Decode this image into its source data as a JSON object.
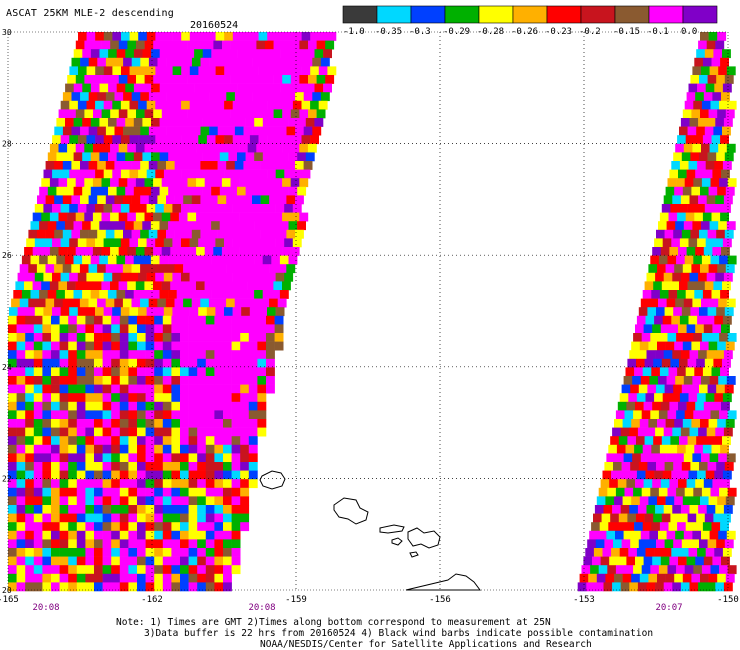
{
  "header": {
    "title": "ASCAT 25KM MLE-2 descending",
    "date": "20160524"
  },
  "colorbar": {
    "labels": [
      "-1.0",
      "-0.35",
      "-0.3",
      "-0.29",
      "-0.28",
      "-0.26",
      "-0.23",
      "-0.2",
      "-0.15",
      "-0.1",
      "0.0"
    ],
    "colors": [
      "#3a3a3a",
      "#00d8ff",
      "#0040ff",
      "#00b000",
      "#ffff00",
      "#ffb000",
      "#ff0000",
      "#c8141e",
      "#8a5a30",
      "#ff00ff",
      "#8000c8"
    ]
  },
  "map": {
    "lon_ticks": [
      "-165",
      "-162",
      "-159",
      "-156",
      "-153",
      "-150"
    ],
    "lat_ticks": [
      "30",
      "28",
      "26",
      "24",
      "22",
      "20"
    ],
    "time_labels": [
      "20:08",
      "20:08",
      "20:07"
    ],
    "time_color": "#800080",
    "coastline_color": "#000000",
    "grid_style": "dotted"
  },
  "notes": {
    "line1": "Note: 1) Times are GMT 2)Times along bottom correspond to measurement at 25N",
    "line2": "3)Data buffer is 22 hrs from 20160524 4) Black wind barbs indicate possible contamination",
    "line3": "NOAA/NESDIS/Center for Satellite Applications and Research"
  }
}
